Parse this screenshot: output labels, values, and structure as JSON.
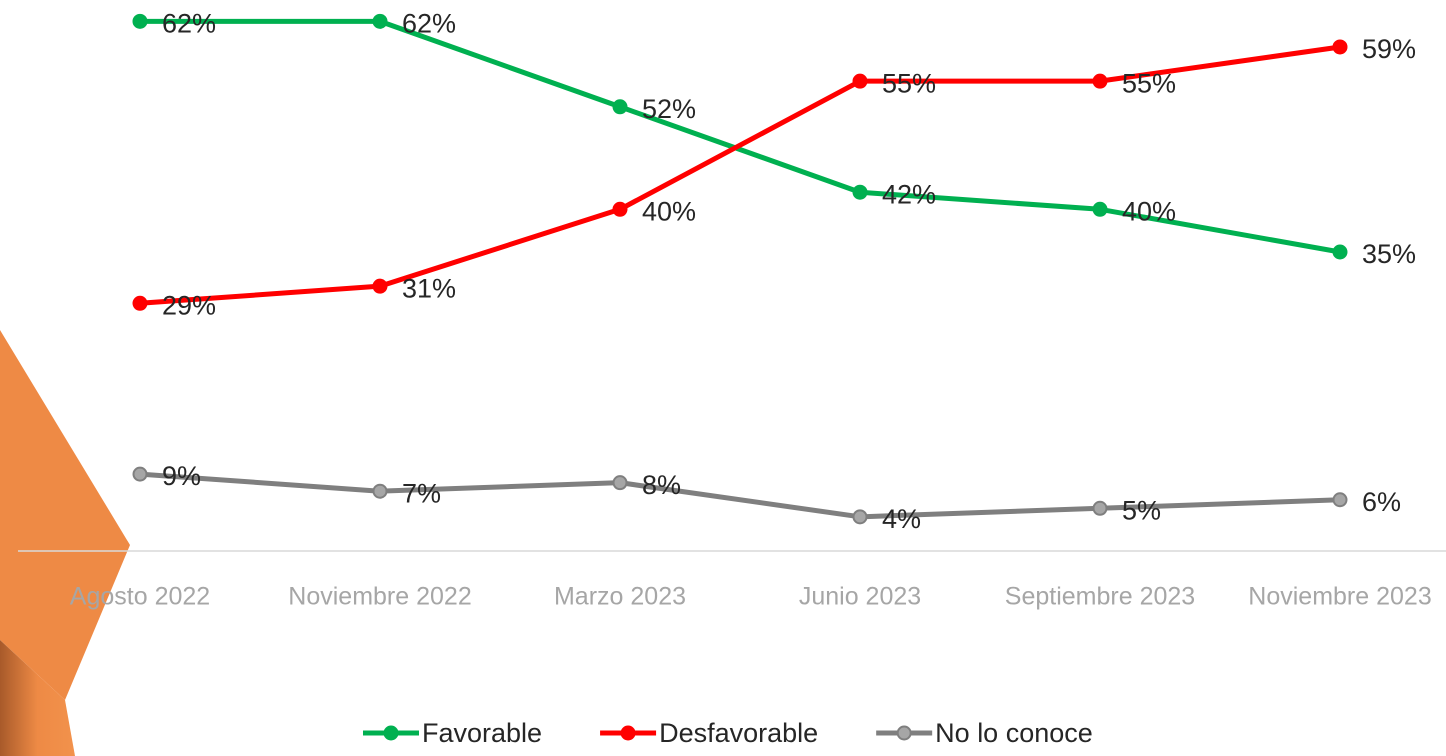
{
  "chart_data": {
    "type": "line",
    "categories": [
      "Agosto 2022",
      "Noviembre 2022",
      "Marzo 2023",
      "Junio 2023",
      "Septiembre 2023",
      "Noviembre 2023"
    ],
    "series": [
      {
        "name": "Favorable",
        "color": "#00b050",
        "values": [
          62,
          62,
          52,
          42,
          40,
          35
        ],
        "value_labels": [
          "62%",
          "62%",
          "52%",
          "42%",
          "40%",
          "35%"
        ]
      },
      {
        "name": "Desfavorable",
        "color": "#ff0000",
        "values": [
          29,
          31,
          40,
          55,
          55,
          59
        ],
        "value_labels": [
          "29%",
          "31%",
          "40%",
          "55%",
          "55%",
          "59%"
        ]
      },
      {
        "name": "No lo conoce",
        "color": "#7f7f7f",
        "values": [
          9,
          7,
          8,
          4,
          5,
          6
        ],
        "value_labels": [
          "9%",
          "7%",
          "8%",
          "4%",
          "5%",
          "6%"
        ]
      }
    ],
    "ylim": [
      0,
      64.5
    ],
    "legend": "bottom"
  }
}
